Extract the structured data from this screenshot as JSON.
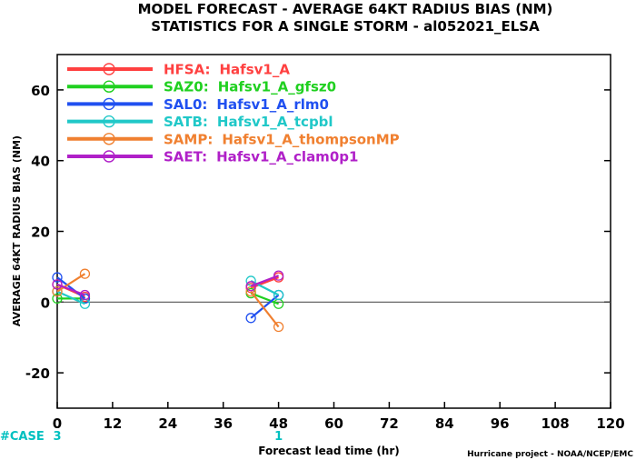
{
  "title": {
    "line1": "MODEL FORECAST - AVERAGE 64KT RADIUS BIAS (NM)",
    "line2": "STATISTICS FOR A SINGLE STORM - al052021_ELSA"
  },
  "footer": {
    "case_label": "#CASE",
    "credit": "Hurricane project - NOAA/NCEP/EMC",
    "case_color": "#00c0c0"
  },
  "chart_data": {
    "type": "line",
    "xlabel": "Forecast lead time (hr)",
    "ylabel": "AVERAGE 64KT RADIUS BIAS (NM)",
    "xlim": [
      0,
      120
    ],
    "ylim": [
      -30,
      70
    ],
    "xticks": [
      "0",
      "12",
      "24",
      "36",
      "48",
      "60",
      "72",
      "84",
      "96",
      "108",
      "120"
    ],
    "yticks": [
      "-20",
      "0",
      "20",
      "40",
      "60"
    ],
    "zero_line": true,
    "grid": false,
    "legend_position": "top-left",
    "cases": [
      {
        "x": 0,
        "count": "3"
      },
      {
        "x": 48,
        "count": "1"
      }
    ],
    "series": [
      {
        "name": "HFSA",
        "desc": "Hafsv1_A",
        "color": "#ff4040",
        "points": [
          [
            0,
            5
          ],
          [
            6,
            1.5
          ],
          [
            42,
            4
          ],
          [
            48,
            7
          ]
        ]
      },
      {
        "name": "SAZ0",
        "desc": "Hafsv1_A_gfsz0",
        "color": "#20d020",
        "points": [
          [
            0,
            1
          ],
          [
            6,
            1
          ],
          [
            42,
            2.5
          ],
          [
            48,
            -0.5
          ]
        ]
      },
      {
        "name": "SAL0",
        "desc": "Hafsv1_A_rlm0",
        "color": "#2050f0",
        "points": [
          [
            0,
            7
          ],
          [
            6,
            1
          ],
          [
            42,
            -4.5
          ],
          [
            48,
            2
          ]
        ]
      },
      {
        "name": "SATB",
        "desc": "Hafsv1_A_tcpbl",
        "color": "#20c8c8",
        "points": [
          [
            0,
            3
          ],
          [
            6,
            -0.5
          ],
          [
            42,
            6
          ],
          [
            48,
            2
          ]
        ]
      },
      {
        "name": "SAMP",
        "desc": "Hafsv1_A_thompsonMP",
        "color": "#f08030",
        "points": [
          [
            0,
            3
          ],
          [
            6,
            8
          ],
          [
            42,
            3
          ],
          [
            48,
            -7
          ]
        ]
      },
      {
        "name": "SAET",
        "desc": "Hafsv1_A_clam0p1",
        "color": "#b020c8",
        "points": [
          [
            0,
            5
          ],
          [
            6,
            2
          ],
          [
            42,
            4.5
          ],
          [
            48,
            7.5
          ]
        ]
      }
    ]
  }
}
